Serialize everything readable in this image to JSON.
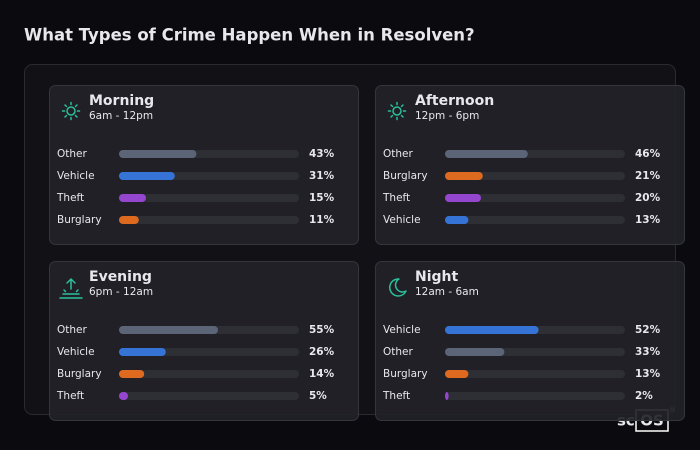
{
  "title": "What Types of Crime Happen When in Resolven?",
  "xlim": [
    0,
    100
  ],
  "panels": [
    {
      "title": "Morning",
      "subtitle": "6am - 12pm",
      "icon": "sun",
      "rows": [
        {
          "label": "Other",
          "value": 43,
          "value_label": "43%",
          "color": "#5c6577"
        },
        {
          "label": "Vehicle",
          "value": 31,
          "value_label": "31%",
          "color": "#3574d6"
        },
        {
          "label": "Theft",
          "value": 15,
          "value_label": "15%",
          "color": "#9446cf"
        },
        {
          "label": "Burglary",
          "value": 11,
          "value_label": "11%",
          "color": "#dd6a1f"
        }
      ]
    },
    {
      "title": "Afternoon",
      "subtitle": "12pm - 6pm",
      "icon": "sun",
      "rows": [
        {
          "label": "Other",
          "value": 46,
          "value_label": "46%",
          "color": "#5c6577"
        },
        {
          "label": "Burglary",
          "value": 21,
          "value_label": "21%",
          "color": "#dd6a1f"
        },
        {
          "label": "Theft",
          "value": 20,
          "value_label": "20%",
          "color": "#9446cf"
        },
        {
          "label": "Vehicle",
          "value": 13,
          "value_label": "13%",
          "color": "#3574d6"
        }
      ]
    },
    {
      "title": "Evening",
      "subtitle": "6pm - 12am",
      "icon": "sunset",
      "rows": [
        {
          "label": "Other",
          "value": 55,
          "value_label": "55%",
          "color": "#5c6577"
        },
        {
          "label": "Vehicle",
          "value": 26,
          "value_label": "26%",
          "color": "#3574d6"
        },
        {
          "label": "Burglary",
          "value": 14,
          "value_label": "14%",
          "color": "#dd6a1f"
        },
        {
          "label": "Theft",
          "value": 5,
          "value_label": "5%",
          "color": "#9446cf"
        }
      ]
    },
    {
      "title": "Night",
      "subtitle": "12am - 6am",
      "icon": "moon",
      "rows": [
        {
          "label": "Vehicle",
          "value": 52,
          "value_label": "52%",
          "color": "#3574d6"
        },
        {
          "label": "Other",
          "value": 33,
          "value_label": "33%",
          "color": "#5c6577"
        },
        {
          "label": "Burglary",
          "value": 13,
          "value_label": "13%",
          "color": "#dd6a1f"
        },
        {
          "label": "Theft",
          "value": 2,
          "value_label": "2%",
          "color": "#9446cf"
        }
      ]
    }
  ],
  "logo": {
    "prefix": "sc",
    "boxed": "OS",
    "mark": "®"
  }
}
